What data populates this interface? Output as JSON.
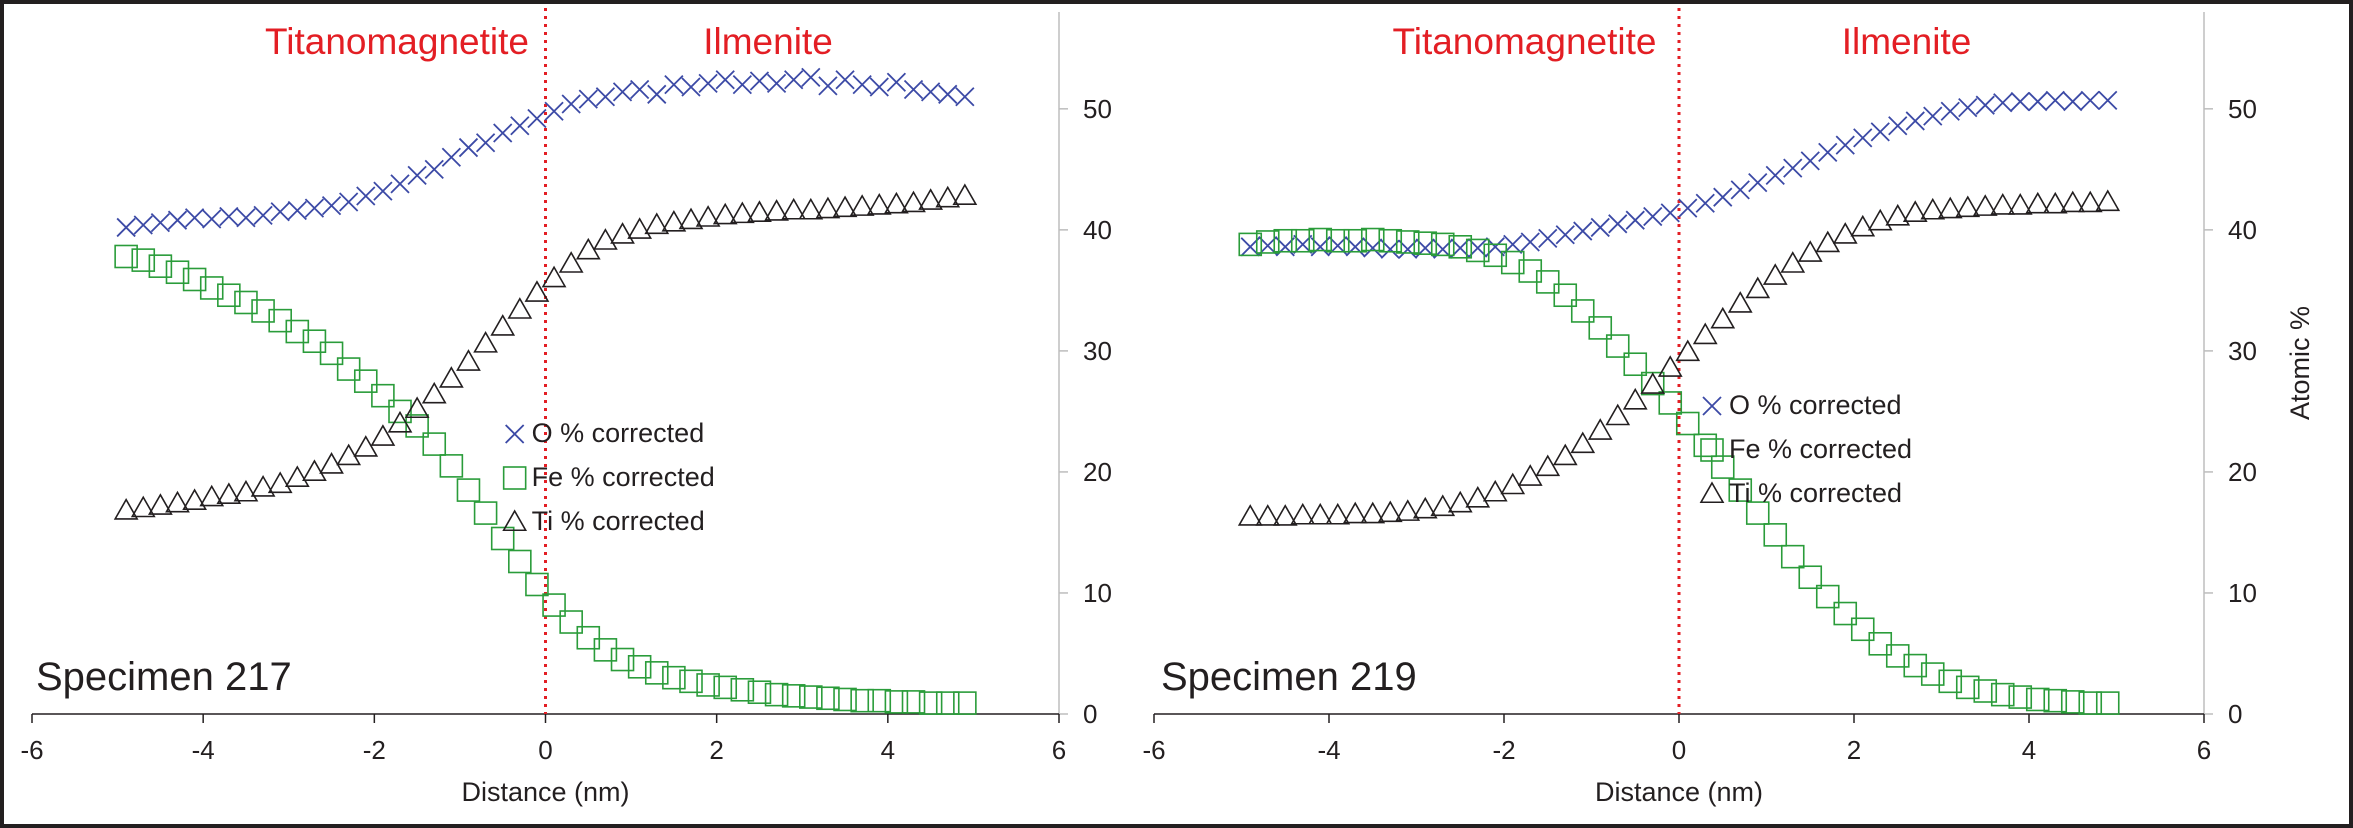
{
  "colors": {
    "phase_label": "#e31e24",
    "interface_line": "#e31e24",
    "oxygen": "#3c4aa6",
    "iron": "#2a9c3a",
    "titanium": "#231f20",
    "axis": "#231f20",
    "gridline": "#bdbdbd"
  },
  "chart_data": [
    {
      "type": "scatter",
      "specimen_label": "Specimen 217",
      "phase_labels": {
        "left": "Titanomagnetite",
        "right": "Ilmenite"
      },
      "interface_x": 0,
      "xlabel": "Distance (nm)",
      "ylabel": "",
      "xlim": [
        -6,
        6
      ],
      "ylim": [
        0,
        58
      ],
      "x_ticks": [
        "-6",
        "-4",
        "-2",
        "0",
        "2",
        "4",
        "6"
      ],
      "y_ticks": [
        "0",
        "10",
        "20",
        "30",
        "40",
        "50"
      ],
      "legend": {
        "position": "center-right",
        "entries": [
          "O % corrected",
          "Fe % corrected",
          "Ti % corrected"
        ]
      },
      "x": [
        -4.9,
        -4.7,
        -4.5,
        -4.3,
        -4.1,
        -3.9,
        -3.7,
        -3.5,
        -3.3,
        -3.1,
        -2.9,
        -2.7,
        -2.5,
        -2.3,
        -2.1,
        -1.9,
        -1.7,
        -1.5,
        -1.3,
        -1.1,
        -0.9,
        -0.7,
        -0.5,
        -0.3,
        -0.1,
        0.1,
        0.3,
        0.5,
        0.7,
        0.9,
        1.1,
        1.3,
        1.5,
        1.7,
        1.9,
        2.1,
        2.3,
        2.5,
        2.7,
        2.9,
        3.1,
        3.3,
        3.5,
        3.7,
        3.9,
        4.1,
        4.3,
        4.5,
        4.7,
        4.9
      ],
      "series": [
        {
          "name": "O % corrected",
          "marker": "x",
          "values": [
            40.2,
            40.4,
            40.6,
            40.8,
            41.0,
            40.9,
            41.1,
            41.0,
            41.2,
            41.5,
            41.6,
            41.8,
            42.0,
            42.3,
            42.8,
            43.2,
            43.8,
            44.5,
            45.0,
            46.0,
            46.8,
            47.2,
            48.0,
            48.6,
            49.2,
            49.8,
            50.4,
            50.8,
            51.0,
            51.4,
            51.6,
            51.2,
            52.0,
            51.8,
            52.1,
            52.4,
            52.0,
            52.3,
            52.1,
            52.4,
            52.6,
            51.9,
            52.4,
            52.0,
            51.8,
            52.2,
            51.6,
            51.4,
            51.2,
            51.0
          ]
        },
        {
          "name": "Fe % corrected",
          "marker": "square",
          "values": [
            37.8,
            37.5,
            37.0,
            36.5,
            35.9,
            35.2,
            34.6,
            34.0,
            33.3,
            32.5,
            31.6,
            30.8,
            29.8,
            28.5,
            27.5,
            26.3,
            25.0,
            23.8,
            22.3,
            20.5,
            18.5,
            16.6,
            14.5,
            12.6,
            10.7,
            9.0,
            7.6,
            6.3,
            5.3,
            4.5,
            3.9,
            3.4,
            3.0,
            2.7,
            2.4,
            2.2,
            2.0,
            1.8,
            1.6,
            1.5,
            1.4,
            1.3,
            1.2,
            1.1,
            1.1,
            1.0,
            1.0,
            0.9,
            0.9,
            0.9
          ]
        },
        {
          "name": "Ti % corrected",
          "marker": "triangle",
          "values": [
            16.8,
            17.0,
            17.2,
            17.4,
            17.6,
            17.9,
            18.1,
            18.3,
            18.7,
            19.0,
            19.5,
            20.0,
            20.6,
            21.3,
            22.0,
            22.9,
            24.0,
            25.2,
            26.4,
            27.7,
            29.1,
            30.6,
            32.0,
            33.4,
            34.8,
            36.0,
            37.2,
            38.3,
            39.1,
            39.6,
            40.0,
            40.4,
            40.6,
            40.8,
            41.0,
            41.2,
            41.3,
            41.4,
            41.5,
            41.6,
            41.6,
            41.7,
            41.8,
            41.9,
            42.0,
            42.1,
            42.2,
            42.4,
            42.6,
            42.8
          ]
        }
      ]
    },
    {
      "type": "scatter",
      "specimen_label": "Specimen 219",
      "phase_labels": {
        "left": "Titanomagnetite",
        "right": "Ilmenite"
      },
      "interface_x": 0,
      "xlabel": "Distance (nm)",
      "ylabel": "Atomic %",
      "xlim": [
        -6,
        6
      ],
      "ylim": [
        0,
        58
      ],
      "x_ticks": [
        "-6",
        "-4",
        "-2",
        "0",
        "2",
        "4",
        "6"
      ],
      "y_ticks": [
        "0",
        "10",
        "20",
        "30",
        "40",
        "50"
      ],
      "legend": {
        "position": "center-right",
        "entries": [
          "O % corrected",
          "Fe % corrected",
          "Ti % corrected"
        ]
      },
      "x": [
        -4.9,
        -4.7,
        -4.5,
        -4.3,
        -4.1,
        -3.9,
        -3.7,
        -3.5,
        -3.3,
        -3.1,
        -2.9,
        -2.7,
        -2.5,
        -2.3,
        -2.1,
        -1.9,
        -1.7,
        -1.5,
        -1.3,
        -1.1,
        -0.9,
        -0.7,
        -0.5,
        -0.3,
        -0.1,
        0.1,
        0.3,
        0.5,
        0.7,
        0.9,
        1.1,
        1.3,
        1.5,
        1.7,
        1.9,
        2.1,
        2.3,
        2.5,
        2.7,
        2.9,
        3.1,
        3.3,
        3.5,
        3.7,
        3.9,
        4.1,
        4.3,
        4.5,
        4.7,
        4.9
      ],
      "series": [
        {
          "name": "O % corrected",
          "marker": "x",
          "values": [
            38.6,
            38.7,
            38.6,
            38.8,
            38.6,
            38.7,
            38.6,
            38.5,
            38.4,
            38.4,
            38.5,
            38.4,
            38.5,
            38.5,
            38.6,
            38.8,
            39.0,
            39.3,
            39.6,
            39.9,
            40.2,
            40.5,
            40.8,
            41.1,
            41.4,
            41.8,
            42.2,
            42.7,
            43.3,
            43.9,
            44.5,
            45.1,
            45.7,
            46.4,
            47.0,
            47.6,
            48.1,
            48.6,
            49.0,
            49.4,
            49.8,
            50.1,
            50.3,
            50.5,
            50.6,
            50.6,
            50.7,
            50.6,
            50.7,
            50.7
          ]
        },
        {
          "name": "Fe % corrected",
          "marker": "square",
          "values": [
            38.8,
            39.0,
            39.1,
            39.1,
            39.2,
            39.1,
            39.1,
            39.2,
            39.1,
            39.0,
            38.9,
            38.8,
            38.6,
            38.3,
            37.9,
            37.3,
            36.6,
            35.7,
            34.6,
            33.3,
            31.9,
            30.4,
            28.9,
            27.3,
            25.7,
            24.0,
            22.2,
            20.4,
            18.5,
            16.6,
            14.8,
            13.0,
            11.3,
            9.7,
            8.3,
            7.0,
            5.8,
            4.8,
            4.0,
            3.3,
            2.7,
            2.2,
            1.9,
            1.6,
            1.4,
            1.2,
            1.1,
            1.0,
            0.9,
            0.9
          ]
        },
        {
          "name": "Ti % corrected",
          "marker": "triangle",
          "values": [
            16.3,
            16.3,
            16.3,
            16.4,
            16.4,
            16.4,
            16.5,
            16.5,
            16.6,
            16.7,
            16.9,
            17.1,
            17.4,
            17.8,
            18.3,
            18.9,
            19.6,
            20.4,
            21.3,
            22.3,
            23.4,
            24.6,
            25.9,
            27.2,
            28.6,
            29.9,
            31.3,
            32.6,
            33.9,
            35.1,
            36.2,
            37.2,
            38.1,
            38.9,
            39.6,
            40.2,
            40.7,
            41.1,
            41.4,
            41.6,
            41.7,
            41.8,
            41.9,
            42.0,
            42.0,
            42.1,
            42.1,
            42.2,
            42.2,
            42.3
          ]
        }
      ]
    }
  ]
}
